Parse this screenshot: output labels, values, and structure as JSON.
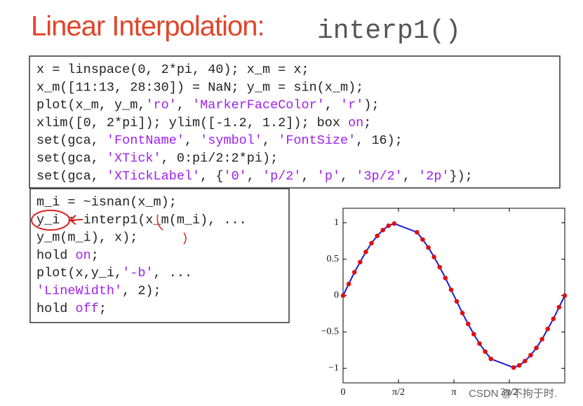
{
  "title": {
    "text": "Linear Interpolation:",
    "code": "interp1()"
  },
  "code_block_1": [
    "x = linspace(0, 2*pi, 40);  x_m = x;",
    "x_m([11:13, 28:30]) = NaN;  y_m = sin(x_m);",
    "plot(x_m, y_m,'ro', 'MarkerFaceColor', 'r');",
    "xlim([0, 2*pi]);  ylim([-1.2, 1.2]);  box on;",
    "set(gca, 'FontName', 'symbol', 'FontSize', 16);",
    "set(gca, 'XTick', 0:pi/2:2*pi);",
    "set(gca, 'XTickLabel', {'0', 'p/2', 'p', '3p/2', '2p'});"
  ],
  "code_block_2": [
    "m_i = ~isnan(x_m);",
    "y_i = interp1(x_m(m_i), ...",
    "    y_m(m_i), x);",
    "hold on;",
    "plot(x,y_i,'-b', ...",
    "    'LineWidth', 2);",
    "hold off;"
  ],
  "watermark": "CSDN @不拘于时.",
  "chart_data": {
    "type": "line",
    "x": [
      0,
      0.161,
      0.322,
      0.483,
      0.644,
      0.806,
      0.967,
      1.128,
      1.289,
      1.45,
      1.611,
      1.772,
      1.933,
      2.094,
      2.256,
      2.417,
      2.578,
      2.739,
      2.9,
      3.061,
      3.222,
      3.383,
      3.544,
      3.705,
      3.866,
      4.028,
      4.189,
      4.35,
      4.511,
      4.672,
      4.833,
      4.994,
      5.155,
      5.316,
      5.478,
      5.639,
      5.8,
      5.961,
      6.122,
      6.283
    ],
    "series": [
      {
        "color": "#e01010",
        "marker": "circle",
        "values": [
          0,
          0.16,
          0.32,
          0.46,
          0.6,
          0.72,
          0.82,
          0.9,
          0.96,
          0.99,
          null,
          null,
          null,
          0.87,
          0.77,
          0.66,
          0.53,
          0.39,
          0.24,
          0.08,
          -0.08,
          -0.24,
          -0.39,
          -0.53,
          -0.66,
          -0.77,
          -0.87,
          null,
          null,
          null,
          -0.99,
          -0.96,
          -0.9,
          -0.82,
          -0.72,
          -0.6,
          -0.46,
          -0.32,
          -0.16,
          0
        ]
      },
      {
        "color": "#1a1ad8",
        "marker": "none",
        "values": [
          0,
          0.16,
          0.32,
          0.46,
          0.6,
          0.72,
          0.82,
          0.9,
          0.96,
          0.99,
          0.96,
          0.93,
          0.9,
          0.87,
          0.77,
          0.66,
          0.53,
          0.39,
          0.24,
          0.08,
          -0.08,
          -0.24,
          -0.39,
          -0.53,
          -0.66,
          -0.77,
          -0.87,
          -0.9,
          -0.93,
          -0.96,
          -0.99,
          -0.96,
          -0.9,
          -0.82,
          -0.72,
          -0.6,
          -0.46,
          -0.32,
          -0.16,
          0
        ]
      }
    ],
    "xlim": [
      0,
      6.283
    ],
    "ylim": [
      -1.2,
      1.2
    ],
    "xticks": [
      {
        "value": 0,
        "label": "0"
      },
      {
        "value": 1.571,
        "label": "π/2"
      },
      {
        "value": 3.142,
        "label": "π"
      },
      {
        "value": 4.712,
        "label": "3π/2"
      }
    ],
    "yticks": [
      {
        "value": -1,
        "label": "−1"
      },
      {
        "value": -0.5,
        "label": "−0.5"
      },
      {
        "value": 0,
        "label": "0"
      },
      {
        "value": 0.5,
        "label": "0.5"
      },
      {
        "value": 1,
        "label": "1"
      }
    ]
  }
}
